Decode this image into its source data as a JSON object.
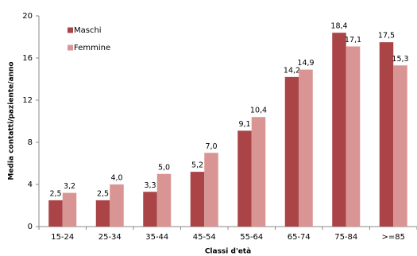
{
  "chart_data": {
    "type": "bar",
    "x_label": "Classi d'età",
    "y_label": "Media contatti/paziente/anno",
    "categories": [
      "15-24",
      "25-34",
      "35-44",
      "45-54",
      "55-64",
      "65-74",
      "75-84",
      ">=85"
    ],
    "series": [
      {
        "name": "Maschi",
        "color": "#aa4446",
        "values": [
          2.5,
          2.5,
          3.3,
          5.2,
          9.1,
          14.2,
          18.4,
          17.5
        ],
        "value_labels": [
          "2,5",
          "2,5",
          "3,3",
          "5,2",
          "9,1",
          "14,2",
          "18,4",
          "17,5"
        ]
      },
      {
        "name": "Femmine",
        "color": "#d99594",
        "values": [
          3.2,
          4.0,
          5.0,
          7.0,
          10.4,
          14.9,
          17.1,
          15.3
        ],
        "value_labels": [
          "3,2",
          "4,0",
          "5,0",
          "7,0",
          "10,4",
          "14,9",
          "17,1",
          "15,3"
        ]
      }
    ],
    "ylim": [
      0,
      20
    ],
    "yticks": [
      0,
      4,
      8,
      12,
      16,
      20
    ],
    "grid": false,
    "legend": "top-left"
  }
}
